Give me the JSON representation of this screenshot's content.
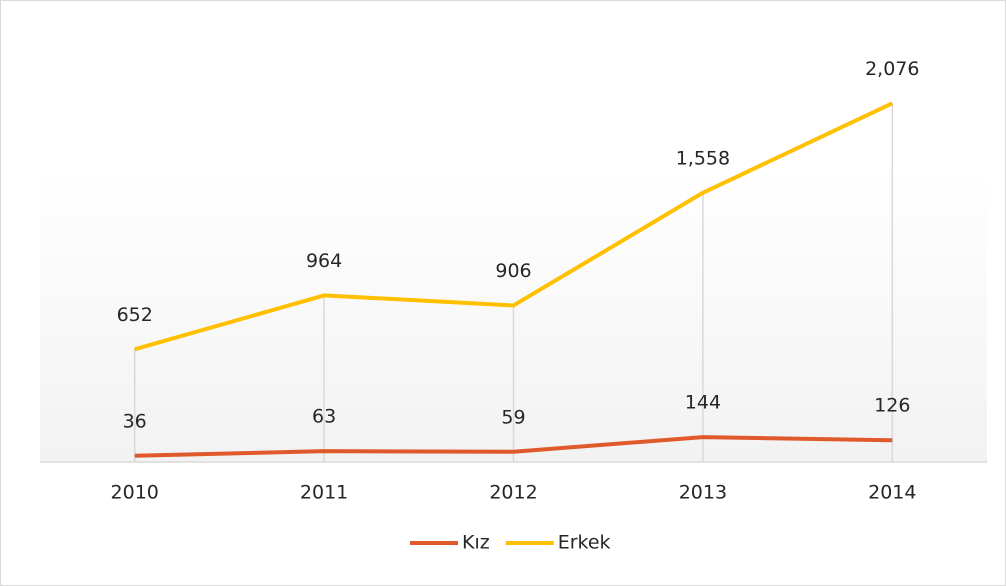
{
  "chart_data": {
    "type": "line",
    "categories": [
      "2010",
      "2011",
      "2012",
      "2013",
      "2014"
    ],
    "series": [
      {
        "name": "Kız",
        "color": "#e0592a",
        "values": [
          36,
          63,
          59,
          144,
          126
        ]
      },
      {
        "name": "Erkek",
        "color": "#ffc000",
        "values": [
          652,
          964,
          906,
          1558,
          2076
        ],
        "value_labels": [
          "652",
          "964",
          "906",
          "1,558",
          "2,076"
        ]
      }
    ],
    "ylim": [
      0,
      2500
    ],
    "legend": "bottom"
  }
}
